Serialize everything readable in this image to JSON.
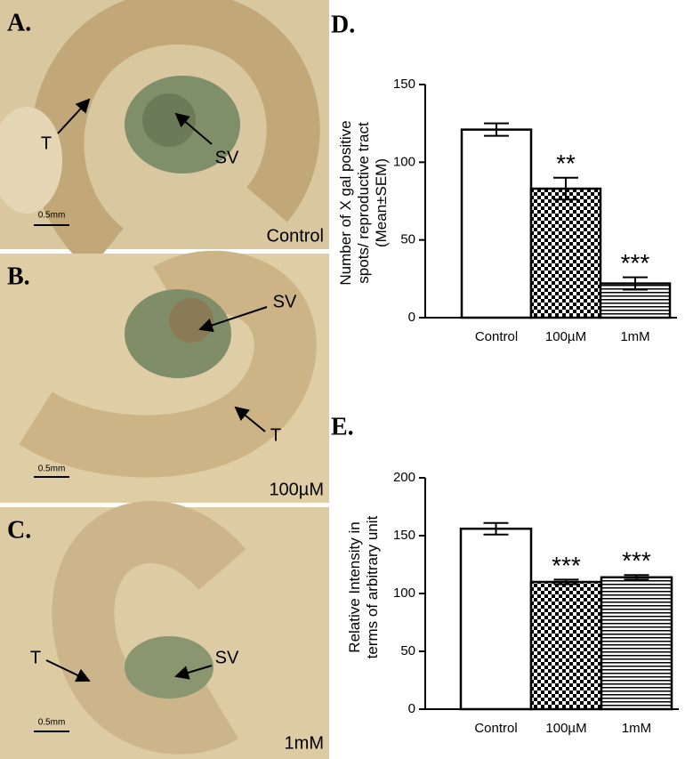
{
  "panels": [
    {
      "label": "A.",
      "condition": "Control",
      "scale": "0.5mm",
      "marks": [
        "T",
        "SV"
      ]
    },
    {
      "label": "B.",
      "condition": "100µM",
      "scale": "0.5mm",
      "marks": [
        "SV",
        "T"
      ]
    },
    {
      "label": "C.",
      "condition": "1mM",
      "scale": "0.5mm",
      "marks": [
        "T",
        "SV"
      ]
    }
  ],
  "chart_data": [
    {
      "type": "bar",
      "title": "D.",
      "ylabel": [
        "Number of X gal positive",
        "spots/ reproductive tract",
        "(Mean±SEM)"
      ],
      "categories": [
        "Control",
        "100µM",
        "1mM"
      ],
      "values": [
        121,
        83,
        22
      ],
      "errors": [
        4,
        7,
        4
      ],
      "annotations": [
        null,
        "**",
        "***"
      ],
      "fills": [
        "white",
        "checker",
        "stripes"
      ],
      "ylim": [
        0,
        150
      ],
      "yticks": [
        0,
        50,
        100,
        150
      ]
    },
    {
      "type": "bar",
      "title": "E.",
      "ylabel": [
        "Relative Intensity in",
        "terms of arbitrary unit"
      ],
      "categories": [
        "Control",
        "100µM",
        "1mM"
      ],
      "values": [
        156,
        110,
        114
      ],
      "errors": [
        5,
        2,
        2
      ],
      "annotations": [
        null,
        "***",
        "***"
      ],
      "fills": [
        "white",
        "checker",
        "stripes"
      ],
      "ylim": [
        0,
        200
      ],
      "yticks": [
        0,
        50,
        100,
        150,
        200
      ]
    }
  ]
}
